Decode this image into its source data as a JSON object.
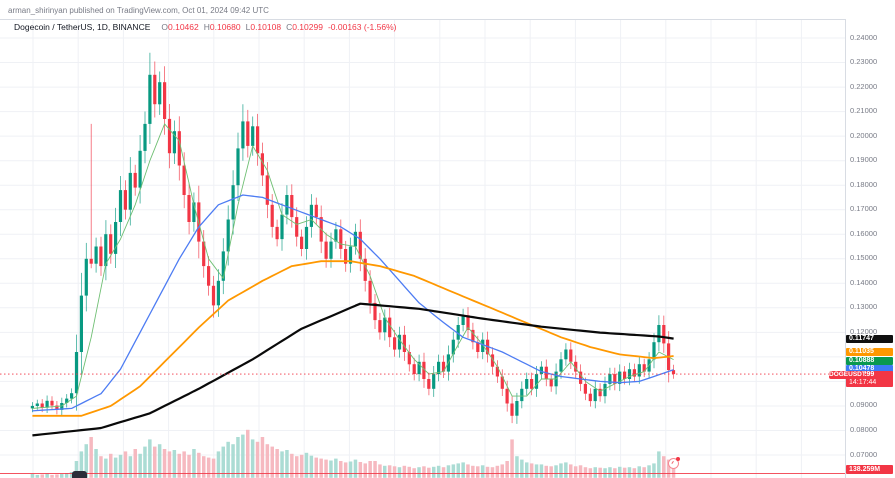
{
  "header": {
    "publish_line": "arman_shirinyan published on TradingView.com, Oct 01, 2024 09:42 UTC"
  },
  "legend": {
    "title": "Dogecoin / TetherUS, 1D, BINANCE",
    "ohlc": [
      {
        "label": "O",
        "value": "0.10462"
      },
      {
        "label": "H",
        "value": "0.10680"
      },
      {
        "label": "L",
        "value": "0.10108"
      },
      {
        "label": "C",
        "value": "0.10299"
      }
    ],
    "change": "-0.00163 (-1.56%)"
  },
  "axis": {
    "ticks": [
      "0.24000",
      "0.23000",
      "0.22000",
      "0.21000",
      "0.20000",
      "0.19000",
      "0.18000",
      "0.17000",
      "0.16000",
      "0.15000",
      "0.14000",
      "0.13000",
      "0.12000",
      "0.09000",
      "0.08000",
      "0.07000"
    ],
    "volume_label": "138.259M",
    "volume_label_bg": "#f23645"
  },
  "price_labels": [
    {
      "name": "ma-200-label",
      "value": "0.11747",
      "price": 0.11747,
      "bg": "#101010",
      "dy": 0
    },
    {
      "name": "ma-100-label",
      "value": "0.11035",
      "price": 0.11035,
      "bg": "#ff9800",
      "dy": -4
    },
    {
      "name": "ma-fast-label",
      "value": "0.10888",
      "price": 0.10888,
      "bg": "#0a9950",
      "dy": 1.5
    },
    {
      "name": "ma-50-label",
      "value": "0.10478",
      "price": 0.10478,
      "bg": "#3d7bf5",
      "dy": -1
    },
    {
      "name": "last-price-label",
      "value": "0.10299",
      "price": 0.10299,
      "bg": "#f23645",
      "dy": 0.5,
      "symbol_tag": "DOGEUSDT",
      "countdown": "14:17:44"
    }
  ],
  "chart_data": {
    "type": "candlestick",
    "title": "Dogecoin / TetherUS, 1D, BINANCE",
    "symbol": "DOGEUSDT",
    "interval": "1D",
    "exchange": "BINANCE",
    "last_ohlc": {
      "open": 0.10462,
      "high": 0.1068,
      "low": 0.10108,
      "close": 0.10299,
      "change": -0.00163,
      "change_pct": -1.56
    },
    "last_volume": "138.259M",
    "ylim": [
      0.065,
      0.245
    ],
    "price_grid_step": 0.01,
    "grid": true,
    "candles": {
      "first_open": 0.089,
      "closes": [
        0.09,
        0.091,
        0.0893,
        0.0921,
        0.0902,
        0.0884,
        0.0912,
        0.093,
        0.0952,
        0.112,
        0.135,
        0.15,
        0.148,
        0.155,
        0.147,
        0.16,
        0.152,
        0.165,
        0.178,
        0.17,
        0.185,
        0.179,
        0.194,
        0.205,
        0.225,
        0.213,
        0.222,
        0.207,
        0.193,
        0.202,
        0.188,
        0.176,
        0.165,
        0.173,
        0.157,
        0.147,
        0.139,
        0.131,
        0.141,
        0.153,
        0.166,
        0.18,
        0.195,
        0.206,
        0.196,
        0.204,
        0.193,
        0.184,
        0.172,
        0.163,
        0.158,
        0.168,
        0.176,
        0.167,
        0.159,
        0.154,
        0.163,
        0.172,
        0.167,
        0.157,
        0.15,
        0.157,
        0.162,
        0.154,
        0.148,
        0.155,
        0.161,
        0.15,
        0.141,
        0.132,
        0.125,
        0.12,
        0.126,
        0.118,
        0.113,
        0.119,
        0.112,
        0.107,
        0.103,
        0.108,
        0.101,
        0.097,
        0.103,
        0.108,
        0.104,
        0.111,
        0.117,
        0.123,
        0.127,
        0.121,
        0.116,
        0.112,
        0.117,
        0.111,
        0.106,
        0.102,
        0.097,
        0.091,
        0.086,
        0.092,
        0.097,
        0.101,
        0.097,
        0.103,
        0.106,
        0.101,
        0.098,
        0.104,
        0.109,
        0.113,
        0.108,
        0.104,
        0.099,
        0.095,
        0.092,
        0.097,
        0.094,
        0.099,
        0.103,
        0.099,
        0.104,
        0.101,
        0.105,
        0.102,
        0.107,
        0.104,
        0.109,
        0.116,
        0.123,
        0.1155,
        0.10462,
        0.10299
      ],
      "wick_base": 0.0012,
      "wick_frac": 0.35,
      "special_highs": {
        "12": 0.205,
        "24": 0.234,
        "43": 0.213,
        "128": 0.127
      },
      "special_lows": {
        "37": 0.126,
        "98": 0.083
      },
      "last_candle": {
        "o": 0.10462,
        "h": 0.1068,
        "l": 0.10108,
        "c": 0.10299
      }
    },
    "volumes": [
      8,
      6,
      7,
      9,
      6,
      7,
      8,
      10,
      12,
      35,
      55,
      70,
      85,
      60,
      45,
      40,
      50,
      42,
      48,
      55,
      45,
      60,
      50,
      65,
      80,
      65,
      70,
      60,
      55,
      58,
      50,
      55,
      48,
      60,
      52,
      45,
      42,
      40,
      55,
      65,
      75,
      70,
      85,
      90,
      100,
      80,
      75,
      85,
      70,
      65,
      60,
      55,
      58,
      50,
      45,
      48,
      52,
      46,
      42,
      40,
      38,
      36,
      40,
      35,
      32,
      34,
      38,
      33,
      30,
      35,
      35,
      28,
      25,
      26,
      24,
      22,
      25,
      23,
      20,
      22,
      24,
      21,
      23,
      25,
      22,
      26,
      28,
      30,
      32,
      28,
      25,
      24,
      26,
      23,
      22,
      25,
      28,
      35,
      80,
      45,
      38,
      32,
      30,
      28,
      28,
      25,
      24,
      26,
      30,
      32,
      28,
      24,
      26,
      22,
      20,
      22,
      21,
      20,
      22,
      20,
      23,
      21,
      22,
      20,
      24,
      22,
      26,
      30,
      55,
      45,
      38,
      35
    ],
    "moving_averages": [
      {
        "name": "ma-fast-line",
        "color": "#6fbf73",
        "width": 0.9,
        "end_value": 0.10888,
        "points": [
          [
            0,
            0.089
          ],
          [
            6,
            0.09
          ],
          [
            9,
            0.094
          ],
          [
            12,
            0.118
          ],
          [
            15,
            0.148
          ],
          [
            18,
            0.158
          ],
          [
            21,
            0.172
          ],
          [
            24,
            0.19
          ],
          [
            27,
            0.205
          ],
          [
            30,
            0.198
          ],
          [
            33,
            0.172
          ],
          [
            36,
            0.15
          ],
          [
            39,
            0.142
          ],
          [
            42,
            0.172
          ],
          [
            45,
            0.196
          ],
          [
            48,
            0.186
          ],
          [
            51,
            0.168
          ],
          [
            54,
            0.164
          ],
          [
            57,
            0.166
          ],
          [
            60,
            0.16
          ],
          [
            63,
            0.156
          ],
          [
            66,
            0.155
          ],
          [
            69,
            0.143
          ],
          [
            72,
            0.126
          ],
          [
            75,
            0.117
          ],
          [
            78,
            0.109
          ],
          [
            81,
            0.103
          ],
          [
            84,
            0.104
          ],
          [
            87,
            0.115
          ],
          [
            89,
            0.122
          ],
          [
            92,
            0.115
          ],
          [
            95,
            0.106
          ],
          [
            98,
            0.094
          ],
          [
            101,
            0.094
          ],
          [
            104,
            0.101
          ],
          [
            107,
            0.101
          ],
          [
            110,
            0.108
          ],
          [
            113,
            0.1
          ],
          [
            116,
            0.096
          ],
          [
            119,
            0.099
          ],
          [
            122,
            0.102
          ],
          [
            125,
            0.104
          ],
          [
            128,
            0.112
          ],
          [
            131,
            0.10888
          ]
        ]
      },
      {
        "name": "ma-50-line",
        "color": "#4d7cf3",
        "width": 1.3,
        "end_value": 0.10478,
        "points": [
          [
            0,
            0.088
          ],
          [
            8,
            0.089
          ],
          [
            14,
            0.095
          ],
          [
            18,
            0.105
          ],
          [
            22,
            0.12
          ],
          [
            26,
            0.135
          ],
          [
            30,
            0.15
          ],
          [
            34,
            0.163
          ],
          [
            38,
            0.172
          ],
          [
            43,
            0.176
          ],
          [
            47,
            0.175
          ],
          [
            51,
            0.172
          ],
          [
            55,
            0.169
          ],
          [
            59,
            0.166
          ],
          [
            63,
            0.163
          ],
          [
            67,
            0.158
          ],
          [
            71,
            0.15
          ],
          [
            75,
            0.141
          ],
          [
            79,
            0.132
          ],
          [
            84,
            0.124
          ],
          [
            88,
            0.118
          ],
          [
            92,
            0.115
          ],
          [
            96,
            0.112
          ],
          [
            100,
            0.108
          ],
          [
            104,
            0.104
          ],
          [
            108,
            0.102
          ],
          [
            112,
            0.101
          ],
          [
            116,
            0.1
          ],
          [
            120,
            0.0995
          ],
          [
            124,
            0.1
          ],
          [
            127,
            0.102
          ],
          [
            131,
            0.10478
          ]
        ]
      },
      {
        "name": "ma-100-line",
        "color": "#ff9800",
        "width": 1.8,
        "end_value": 0.11035,
        "points": [
          [
            0,
            0.086
          ],
          [
            10,
            0.086
          ],
          [
            16,
            0.09
          ],
          [
            22,
            0.098
          ],
          [
            28,
            0.11
          ],
          [
            34,
            0.122
          ],
          [
            40,
            0.133
          ],
          [
            47,
            0.141
          ],
          [
            53,
            0.147
          ],
          [
            59,
            0.149
          ],
          [
            65,
            0.149
          ],
          [
            71,
            0.147
          ],
          [
            78,
            0.143
          ],
          [
            84,
            0.138
          ],
          [
            90,
            0.133
          ],
          [
            96,
            0.128
          ],
          [
            102,
            0.123
          ],
          [
            108,
            0.118
          ],
          [
            114,
            0.114
          ],
          [
            120,
            0.111
          ],
          [
            127,
            0.1095
          ],
          [
            131,
            0.11035
          ]
        ]
      },
      {
        "name": "ma-200-line",
        "color": "#0a0a0a",
        "width": 2.2,
        "end_value": 0.11747,
        "points": [
          [
            0,
            0.078
          ],
          [
            14,
            0.081
          ],
          [
            24,
            0.087
          ],
          [
            34,
            0.097
          ],
          [
            45,
            0.109
          ],
          [
            55,
            0.1215
          ],
          [
            67,
            0.1317
          ],
          [
            79,
            0.1296
          ],
          [
            92,
            0.1256
          ],
          [
            104,
            0.1223
          ],
          [
            116,
            0.1199
          ],
          [
            128,
            0.1183
          ],
          [
            131,
            0.11747
          ]
        ]
      }
    ],
    "colors": {
      "up": "#089981",
      "down": "#f23645",
      "vol_up": "#abdcd4",
      "vol_down": "#f6b9c0",
      "price_line": "#f23645",
      "grid": "#eff1f5",
      "pane_border": "#d8dce3"
    },
    "last_price": 0.10299
  }
}
